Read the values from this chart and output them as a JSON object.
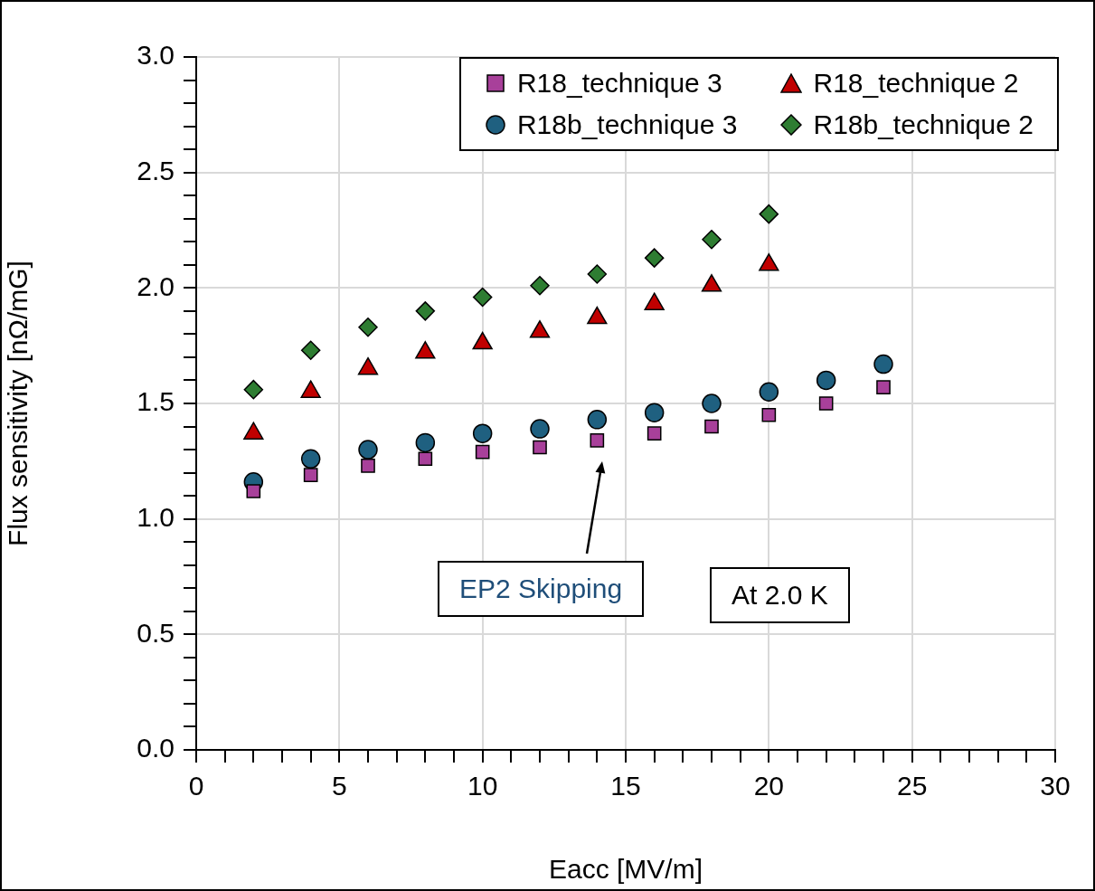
{
  "chart_data": {
    "type": "scatter",
    "xlabel": "Eacc [MV/m]",
    "ylabel": "Flux sensitivity [nΩ/mG]",
    "x": [
      2,
      4,
      6,
      8,
      10,
      12,
      14,
      16,
      18,
      20,
      22,
      24
    ],
    "series": [
      {
        "name": "R18_technique 3",
        "color": "#a8409a",
        "marker": "square",
        "values": [
          1.12,
          1.19,
          1.23,
          1.26,
          1.29,
          1.31,
          1.34,
          1.37,
          1.4,
          1.45,
          1.5,
          1.57
        ]
      },
      {
        "name": "R18_technique 2",
        "color": "#c00000",
        "marker": "triangle",
        "values": [
          1.37,
          1.55,
          1.65,
          1.72,
          1.76,
          1.81,
          1.87,
          1.93,
          2.01,
          2.1,
          null,
          null
        ]
      },
      {
        "name": "R18b_technique 3",
        "color": "#1f6080",
        "marker": "circle",
        "values": [
          1.16,
          1.26,
          1.3,
          1.33,
          1.37,
          1.39,
          1.43,
          1.46,
          1.5,
          1.55,
          1.6,
          1.67
        ]
      },
      {
        "name": "R18b_technique 2",
        "color": "#2e7d32",
        "marker": "diamond",
        "values": [
          1.56,
          1.73,
          1.83,
          1.9,
          1.96,
          2.01,
          2.06,
          2.13,
          2.21,
          2.32,
          null,
          null
        ]
      }
    ],
    "xlim": [
      0,
      30
    ],
    "xticks": [
      0,
      {
        "value": 1,
        "label": null
      },
      {
        "value": 2,
        "label": null
      },
      {
        "value": 3,
        "label": null
      },
      {
        "value": 4,
        "label": null
      },
      5,
      {
        "value": 6,
        "label": null
      },
      {
        "value": 7,
        "label": null
      },
      {
        "value": 8,
        "label": null
      },
      {
        "value": 9,
        "label": null
      },
      10,
      {
        "value": 11,
        "label": null
      },
      {
        "value": 12,
        "label": null
      },
      {
        "value": 13,
        "label": null
      },
      {
        "value": 14,
        "label": null
      },
      15,
      {
        "value": 16,
        "label": null
      },
      {
        "value": 17,
        "label": null
      },
      {
        "value": 18,
        "label": null
      },
      {
        "value": 19,
        "label": null
      },
      20,
      {
        "value": 21,
        "label": null
      },
      {
        "value": 22,
        "label": null
      },
      {
        "value": 23,
        "label": null
      },
      {
        "value": 24,
        "label": null
      },
      25,
      {
        "value": 26,
        "label": null
      },
      {
        "value": 27,
        "label": null
      },
      {
        "value": 28,
        "label": null
      },
      {
        "value": 29,
        "label": null
      },
      30
    ],
    "ylim": [
      0,
      3
    ],
    "yticks": [
      {
        "value": 0,
        "label": "0.0"
      },
      {
        "value": 0.1,
        "label": null
      },
      {
        "value": 0.2,
        "label": null
      },
      {
        "value": 0.3,
        "label": null
      },
      {
        "value": 0.4,
        "label": null
      },
      {
        "value": 0.5,
        "label": "0.5"
      },
      {
        "value": 0.6,
        "label": null
      },
      {
        "value": 0.7,
        "label": null
      },
      {
        "value": 0.8,
        "label": null
      },
      {
        "value": 0.9,
        "label": null
      },
      {
        "value": 1,
        "label": "1.0"
      },
      {
        "value": 1.1,
        "label": null
      },
      {
        "value": 1.2,
        "label": null
      },
      {
        "value": 1.3,
        "label": null
      },
      {
        "value": 1.4,
        "label": null
      },
      {
        "value": 1.5,
        "label": "1.5"
      },
      {
        "value": 1.6,
        "label": null
      },
      {
        "value": 1.7,
        "label": null
      },
      {
        "value": 1.8,
        "label": null
      },
      {
        "value": 1.9,
        "label": null
      },
      {
        "value": 2,
        "label": "2.0"
      },
      {
        "value": 2.1,
        "label": null
      },
      {
        "value": 2.2,
        "label": null
      },
      {
        "value": 2.3,
        "label": null
      },
      {
        "value": 2.4,
        "label": null
      },
      {
        "value": 2.5,
        "label": "2.5"
      },
      {
        "value": 2.6,
        "label": null
      },
      {
        "value": 2.7,
        "label": null
      },
      {
        "value": 2.8,
        "label": null
      },
      {
        "value": 2.9,
        "label": null
      },
      {
        "value": 3,
        "label": "3.0"
      }
    ],
    "grid": true,
    "legend": "top right",
    "annotations": [
      "EP2 Skipping",
      "At 2.0 K"
    ]
  }
}
